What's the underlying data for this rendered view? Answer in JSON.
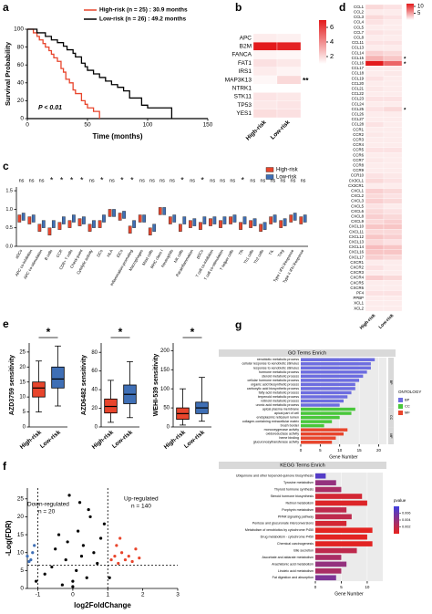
{
  "chart_data": [
    {
      "type": "line",
      "step": true,
      "panel": "a",
      "xlabel": "Time (months)",
      "ylabel": "Survival Probability",
      "annotation": "P < 0.01",
      "xlim": [
        0,
        150
      ],
      "xticks": [
        0,
        50,
        100,
        150
      ],
      "ylim": [
        0,
        100
      ],
      "yticks": [
        0,
        20,
        40,
        60,
        80,
        100
      ],
      "series": [
        {
          "name": "High-risk (n = 25) : 30.9 months",
          "color": "#e8452c",
          "x": [
            0,
            5,
            8,
            10,
            13,
            15,
            18,
            20,
            22,
            25,
            28,
            30,
            32,
            35,
            38,
            40,
            45,
            48,
            50,
            55,
            60
          ],
          "values": [
            100,
            96,
            92,
            88,
            84,
            80,
            76,
            72,
            68,
            64,
            56,
            52,
            44,
            40,
            32,
            28,
            20,
            16,
            12,
            8,
            0
          ]
        },
        {
          "name": "Low-risk (n = 26) : 49.2 months",
          "color": "#000000",
          "x": [
            0,
            8,
            15,
            20,
            25,
            30,
            33,
            38,
            40,
            45,
            48,
            50,
            55,
            60,
            65,
            70,
            75,
            80,
            85,
            95,
            100,
            120
          ],
          "values": [
            100,
            96,
            92,
            88,
            85,
            81,
            77,
            73,
            69,
            62,
            58,
            54,
            50,
            46,
            42,
            38,
            35,
            31,
            23,
            15,
            12,
            0
          ]
        }
      ]
    },
    {
      "type": "heatmap",
      "panel": "b",
      "rows": [
        "APC",
        "B2M",
        "FANCA",
        "FAT1",
        "IRS1",
        "MAP3K13",
        "NTRK1",
        "STK11",
        "TP53",
        "YES1"
      ],
      "columns": [
        "High-risk",
        "Low-risk"
      ],
      "values": [
        [
          1.5,
          1.4
        ],
        [
          7,
          6.8
        ],
        [
          1.3,
          1.2
        ],
        [
          1.8,
          1.6
        ],
        [
          1.5,
          1.3
        ],
        [
          1.2,
          2.0
        ],
        [
          1,
          1
        ],
        [
          1.7,
          1.6
        ],
        [
          1.6,
          1.7
        ],
        [
          1.9,
          1.8
        ]
      ],
      "row_marks": [
        null,
        null,
        null,
        null,
        null,
        "**",
        null,
        null,
        null,
        null
      ],
      "clim": [
        1,
        7
      ],
      "colorbar_ticks": [
        2,
        4,
        6
      ],
      "colors": [
        "#ffffff",
        "#e31a1c"
      ]
    },
    {
      "type": "heatmap",
      "panel": "d",
      "rows": [
        "CCL1",
        "CCL2",
        "CCL3",
        "CCL4",
        "CCL5",
        "CCL7",
        "CCL8",
        "CCL11",
        "CCL13",
        "CCL14",
        "CCL15",
        "CCL16",
        "CCL17",
        "CCL18",
        "CCL19",
        "CCL20",
        "CCL21",
        "CCL22",
        "CCL23",
        "CCL24",
        "CCL25",
        "CCL26",
        "CCL27",
        "CCL28",
        "CCR1",
        "CCR2",
        "CCR3",
        "CCR4",
        "CCR5",
        "CCR6",
        "CCR7",
        "CCR8",
        "CCR9",
        "CCR10",
        "CX3CL1",
        "CX3CR1",
        "CXCL1",
        "CXCL2",
        "CXCL3",
        "CXCL5",
        "CXCL6",
        "CXCL8",
        "CXCL9",
        "CXCL10",
        "CXCL11",
        "CXCL12",
        "CXCL13",
        "CXCL14",
        "CXCL16",
        "CXCL17",
        "CXCR1",
        "CXCR2",
        "CXCR3",
        "CXCR4",
        "CXCR5",
        "CXCR6",
        "PF4",
        "PPBP",
        "XCL1",
        "XCL2"
      ],
      "columns": [
        "High-risk",
        "Low-risk"
      ],
      "values": [
        [
          2,
          1.5
        ],
        [
          1,
          1
        ],
        [
          2,
          1.5
        ],
        [
          1.5,
          1
        ],
        [
          1,
          1
        ],
        [
          1.5,
          1.2
        ],
        [
          1,
          1
        ],
        [
          1.5,
          1.5
        ],
        [
          1,
          1
        ],
        [
          2.5,
          2
        ],
        [
          4,
          3
        ],
        [
          12,
          8
        ],
        [
          1,
          1
        ],
        [
          1,
          1.2
        ],
        [
          1.5,
          1
        ],
        [
          1,
          1
        ],
        [
          1.2,
          1
        ],
        [
          1,
          1
        ],
        [
          1.5,
          1.5
        ],
        [
          1,
          1
        ],
        [
          1.5,
          2
        ],
        [
          1,
          1
        ],
        [
          1,
          1
        ],
        [
          1.5,
          1
        ],
        [
          1,
          1
        ],
        [
          1.2,
          1
        ],
        [
          1,
          1
        ],
        [
          1,
          1
        ],
        [
          1.5,
          1.5
        ],
        [
          1,
          1
        ],
        [
          1.2,
          1
        ],
        [
          1,
          1
        ],
        [
          1,
          1
        ],
        [
          1.5,
          1.2
        ],
        [
          2,
          1.5
        ],
        [
          1,
          1
        ],
        [
          2.5,
          2
        ],
        [
          2,
          1.5
        ],
        [
          2.5,
          2
        ],
        [
          1.5,
          1
        ],
        [
          2,
          1.5
        ],
        [
          2.5,
          2
        ],
        [
          2,
          2.5
        ],
        [
          3,
          3
        ],
        [
          2,
          2
        ],
        [
          3,
          2.5
        ],
        [
          2,
          1.5
        ],
        [
          3.5,
          3
        ],
        [
          3,
          3
        ],
        [
          2.5,
          2
        ],
        [
          1,
          1
        ],
        [
          1.5,
          1
        ],
        [
          1,
          1
        ],
        [
          2.5,
          2
        ],
        [
          1,
          1
        ],
        [
          1,
          1
        ],
        [
          1.5,
          1.5
        ],
        [
          1,
          1
        ],
        [
          1,
          1
        ],
        [
          1,
          1
        ]
      ],
      "row_marks": [
        null,
        null,
        null,
        null,
        null,
        null,
        null,
        null,
        null,
        null,
        "*",
        "*",
        null,
        null,
        null,
        null,
        null,
        null,
        null,
        null,
        "*",
        null,
        null,
        null,
        null,
        null,
        null,
        null,
        null,
        null,
        null,
        null,
        null,
        null,
        null,
        null,
        null,
        null,
        null,
        null,
        null,
        null,
        null,
        null,
        null,
        null,
        null,
        null,
        null,
        null,
        null,
        null,
        null,
        null,
        null,
        null,
        null,
        null,
        null,
        null
      ],
      "clim": [
        0,
        12
      ],
      "colorbar_ticks": [
        5,
        10
      ],
      "colors": [
        "#ffffff",
        "#e31a1c"
      ]
    },
    {
      "type": "dot",
      "panel": "c",
      "categories": [
        "aDCs",
        "APC co-inhibition",
        "APC co-stimulation",
        "B cells",
        "CCR",
        "CD8+ T cells",
        "Check-point",
        "Cytolytic activity",
        "DCs",
        "HLA",
        "iDCs",
        "Inflammation-promoting",
        "Macrophages",
        "Mast cells",
        "MHC class I",
        "Neutrophils",
        "NK cells",
        "Parainflammation",
        "pDCs",
        "T cell co-inhibition",
        "T cell co-stimulation",
        "T helper cells",
        "Tfh",
        "Th1 cells",
        "Th2 cells",
        "TIL",
        "Treg",
        "Type I IFN Response",
        "Type II IFN Response"
      ],
      "annotations": [
        "ns",
        "ns",
        "ns",
        "*",
        "*",
        "*",
        "*",
        "ns",
        "*",
        "ns",
        "*",
        "*",
        "ns",
        "ns",
        "ns",
        "ns",
        "*",
        "ns",
        "*",
        "ns",
        "ns",
        "ns",
        "*",
        "ns",
        "ns",
        "ns",
        "ns",
        "ns",
        "ns"
      ],
      "ylim": [
        0,
        1.6
      ],
      "yticks": [
        {
          "value": 0,
          "label": "0.0"
        },
        {
          "value": 0.5,
          "label": "0.5"
        },
        {
          "value": 1,
          "label": "1.0"
        },
        {
          "value": 1.5,
          "label": "1.5"
        }
      ],
      "series": [
        {
          "name": "High-risk",
          "color": "#e8452c",
          "values": [
            0.75,
            0.7,
            0.5,
            0.4,
            0.55,
            0.6,
            0.65,
            0.5,
            0.6,
            0.9,
            0.8,
            0.45,
            0.75,
            0.4,
            0.95,
            0.7,
            0.5,
            0.6,
            0.55,
            0.65,
            0.6,
            0.7,
            0.55,
            0.6,
            0.5,
            0.7,
            0.6,
            0.75,
            0.7
          ]
        },
        {
          "name": "Low-risk",
          "color": "#3f6fb5",
          "values": [
            0.8,
            0.75,
            0.6,
            0.6,
            0.7,
            0.75,
            0.7,
            0.6,
            0.75,
            0.9,
            0.85,
            0.6,
            0.75,
            0.5,
            0.95,
            0.75,
            0.7,
            0.65,
            0.7,
            0.7,
            0.7,
            0.75,
            0.7,
            0.65,
            0.55,
            0.75,
            0.65,
            0.8,
            0.75
          ]
        }
      ]
    },
    {
      "type": "box",
      "panel": "e",
      "ylabel": "AZD3759 sensitivity",
      "annotation": "*",
      "categories": [
        "High-risk",
        "Low-risk"
      ],
      "colors": [
        "#e8452c",
        "#3f6fb5"
      ],
      "min": [
        5,
        7
      ],
      "q1": [
        10,
        13
      ],
      "median": [
        13,
        16
      ],
      "q3": [
        15,
        20
      ],
      "max": [
        22,
        27
      ],
      "ylim": [
        0,
        28
      ],
      "yticks": [
        0,
        5,
        10,
        15,
        20,
        25
      ]
    },
    {
      "type": "box",
      "ylabel": "AZD6482 sensitivity",
      "annotation": "*",
      "categories": [
        "High-risk",
        "Low-risk"
      ],
      "colors": [
        "#e8452c",
        "#3f6fb5"
      ],
      "min": [
        5,
        10
      ],
      "q1": [
        15,
        25
      ],
      "median": [
        22,
        35
      ],
      "q3": [
        30,
        45
      ],
      "max": [
        50,
        70
      ],
      "ylim": [
        0,
        90
      ],
      "yticks": [
        0,
        20,
        40,
        60,
        80
      ]
    },
    {
      "type": "box",
      "ylabel": "WEHI-539 sensitivity",
      "annotation": "*",
      "categories": [
        "High-risk",
        "Low-risk"
      ],
      "colors": [
        "#e8452c",
        "#3f6fb5"
      ],
      "min": [
        5,
        15
      ],
      "q1": [
        20,
        35
      ],
      "median": [
        35,
        50
      ],
      "q3": [
        50,
        65
      ],
      "max": [
        100,
        130
      ],
      "ylim": [
        0,
        220
      ],
      "yticks": [
        0,
        50,
        100,
        150,
        200
      ]
    },
    {
      "type": "scatter",
      "panel": "f",
      "xlabel": "log2FoldChange",
      "ylabel": "-Log(FDR)",
      "annotations": [
        "Down-regulated",
        "n = 20",
        "Up-regulated",
        "n = 140"
      ],
      "xlim": [
        -1.3,
        3
      ],
      "xticks": [
        -1,
        0,
        1,
        2,
        3
      ],
      "ylim": [
        0,
        28
      ],
      "yticks": [
        0,
        5,
        10,
        15,
        20,
        25
      ],
      "thresholds": {
        "x": [
          -1,
          1
        ],
        "y": 6.5
      },
      "series": [
        {
          "color": "#000000",
          "x": [
            0,
            0.1,
            -0.2,
            0.3,
            -0.4,
            0.5,
            0.2,
            -0.1,
            0.6,
            -0.6,
            0.8,
            -0.8,
            0.4,
            -0.3,
            0.9,
            0.7,
            0.15,
            -0.5,
            1.05,
            -1.05,
            0,
            0.25,
            -0.15,
            0.45
          ],
          "values": [
            2,
            5,
            8,
            12,
            15,
            20,
            24,
            26,
            10,
            6,
            14,
            4,
            3,
            1,
            18,
            7,
            16,
            11,
            3,
            2,
            0.5,
            9,
            13,
            22
          ]
        },
        {
          "color": "#3f6fb5",
          "x": [
            -1.2,
            -1.15,
            -1.3,
            -1.1,
            -1.25
          ],
          "values": [
            8,
            10,
            9,
            12,
            7.5
          ]
        },
        {
          "color": "#e8452c",
          "x": [
            1.1,
            1.2,
            1.3,
            1.4,
            1.5,
            1.6,
            1.7,
            1.25,
            1.8,
            1.9,
            1.35
          ],
          "values": [
            8,
            9,
            7,
            10,
            8,
            9,
            7.5,
            12,
            11,
            8.5,
            14
          ]
        }
      ]
    },
    {
      "type": "hbar",
      "panel": "g",
      "title": "GO Terms Enrich",
      "xlabel": "Gene Number",
      "xlim": [
        0,
        22
      ],
      "xticks": [
        0,
        5,
        10,
        15,
        20
      ],
      "categories": [
        "xenobiotic metabolic process",
        "cellular response to xenobiotic stimulus",
        "response to xenobiotic stimulus",
        "hormone metabolic process",
        "steroid metabolic process",
        "cellular hormone metabolic process",
        "organic acid biosynthetic process",
        "carboxylic acid biosynthetic process",
        "fatty acid metabolic process",
        "terpenoid metabolic process",
        "retinoid metabolic process",
        "uronic acid metabolic process",
        "apical plasma membrane",
        "apical part of cell",
        "endoplasmic reticulum lumen",
        "collagen-containing extracellular matrix",
        "brush border",
        "monooxygenase activity",
        "oxidoreductase activity",
        "heme binding",
        "glucuronosyltransferase activity"
      ],
      "values": [
        19,
        18,
        18,
        17,
        16,
        15,
        14,
        14,
        13,
        12,
        11,
        10,
        14,
        13,
        10,
        8,
        6,
        12,
        11,
        9,
        8
      ],
      "groups": [
        "BP",
        "BP",
        "BP",
        "BP",
        "BP",
        "BP",
        "BP",
        "BP",
        "BP",
        "BP",
        "BP",
        "BP",
        "CC",
        "CC",
        "CC",
        "CC",
        "CC",
        "MF",
        "MF",
        "MF",
        "MF"
      ],
      "legend": {
        "title": "ONTOLOGY",
        "items": [
          "BP",
          "CC",
          "MF"
        ],
        "colors": [
          "#6d6de0",
          "#49c73a",
          "#e8452c"
        ]
      }
    },
    {
      "type": "hbar",
      "title": "KEGG Terms Enrich",
      "xlabel": "Gene Number",
      "xlim": [
        0,
        13
      ],
      "xticks": [
        0,
        5,
        10
      ],
      "categories": [
        "Ubiquinone and other terpenoid-quinone biosynthesis",
        "Tyrosine metabolism",
        "Thyroid hormone synthesis",
        "Steroid hormone biosynthesis",
        "Retinol metabolism",
        "Porphyrin metabolism",
        "PPAR signaling pathway",
        "Pentose and glucuronate interconversions",
        "Metabolism of xenobiotics by cytochrome P450",
        "Drug metabolism - cytochrome P450",
        "Chemical carcinogenesis",
        "Bile secretion",
        "Ascorbate and aldarate metabolism",
        "Arachidonic acid metabolism",
        "Linoleic acid metabolism",
        "Fat digestion and absorption"
      ],
      "values": [
        2,
        4,
        5,
        9,
        10,
        6,
        7,
        6,
        11,
        10,
        11,
        8,
        5,
        6,
        5,
        4
      ],
      "pvalues": [
        0.007,
        0.004,
        0.003,
        0.001,
        0.0005,
        0.002,
        0.002,
        0.001,
        0.0002,
        0.0003,
        0.0003,
        0.002,
        0.003,
        0.004,
        0.003,
        0.005
      ],
      "legend_title": "pvalue",
      "clim": [
        0,
        0.008
      ],
      "colorbar_ticks": [
        0.002,
        0.004,
        0.006
      ],
      "colors": [
        "#e8231c",
        "#3f3fdf"
      ]
    }
  ]
}
